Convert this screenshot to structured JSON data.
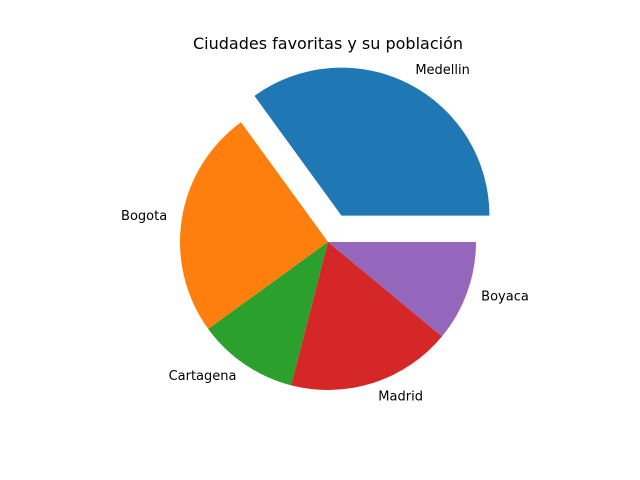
{
  "chart_data": {
    "type": "pie",
    "title": "Ciudades favoritas y su población",
    "categories": [
      "Medellin",
      "Bogota",
      "Cartagena",
      "Madrid",
      "Boyaca"
    ],
    "values": [
      35,
      25,
      11,
      18,
      11
    ],
    "colors": [
      "#1f77b4",
      "#ff7f0e",
      "#2ca02c",
      "#d62728",
      "#9467bd"
    ],
    "explode": [
      0.2,
      0,
      0,
      0,
      0
    ],
    "start_angle_deg": 0,
    "direction": "counterclockwise",
    "legend": "none"
  }
}
